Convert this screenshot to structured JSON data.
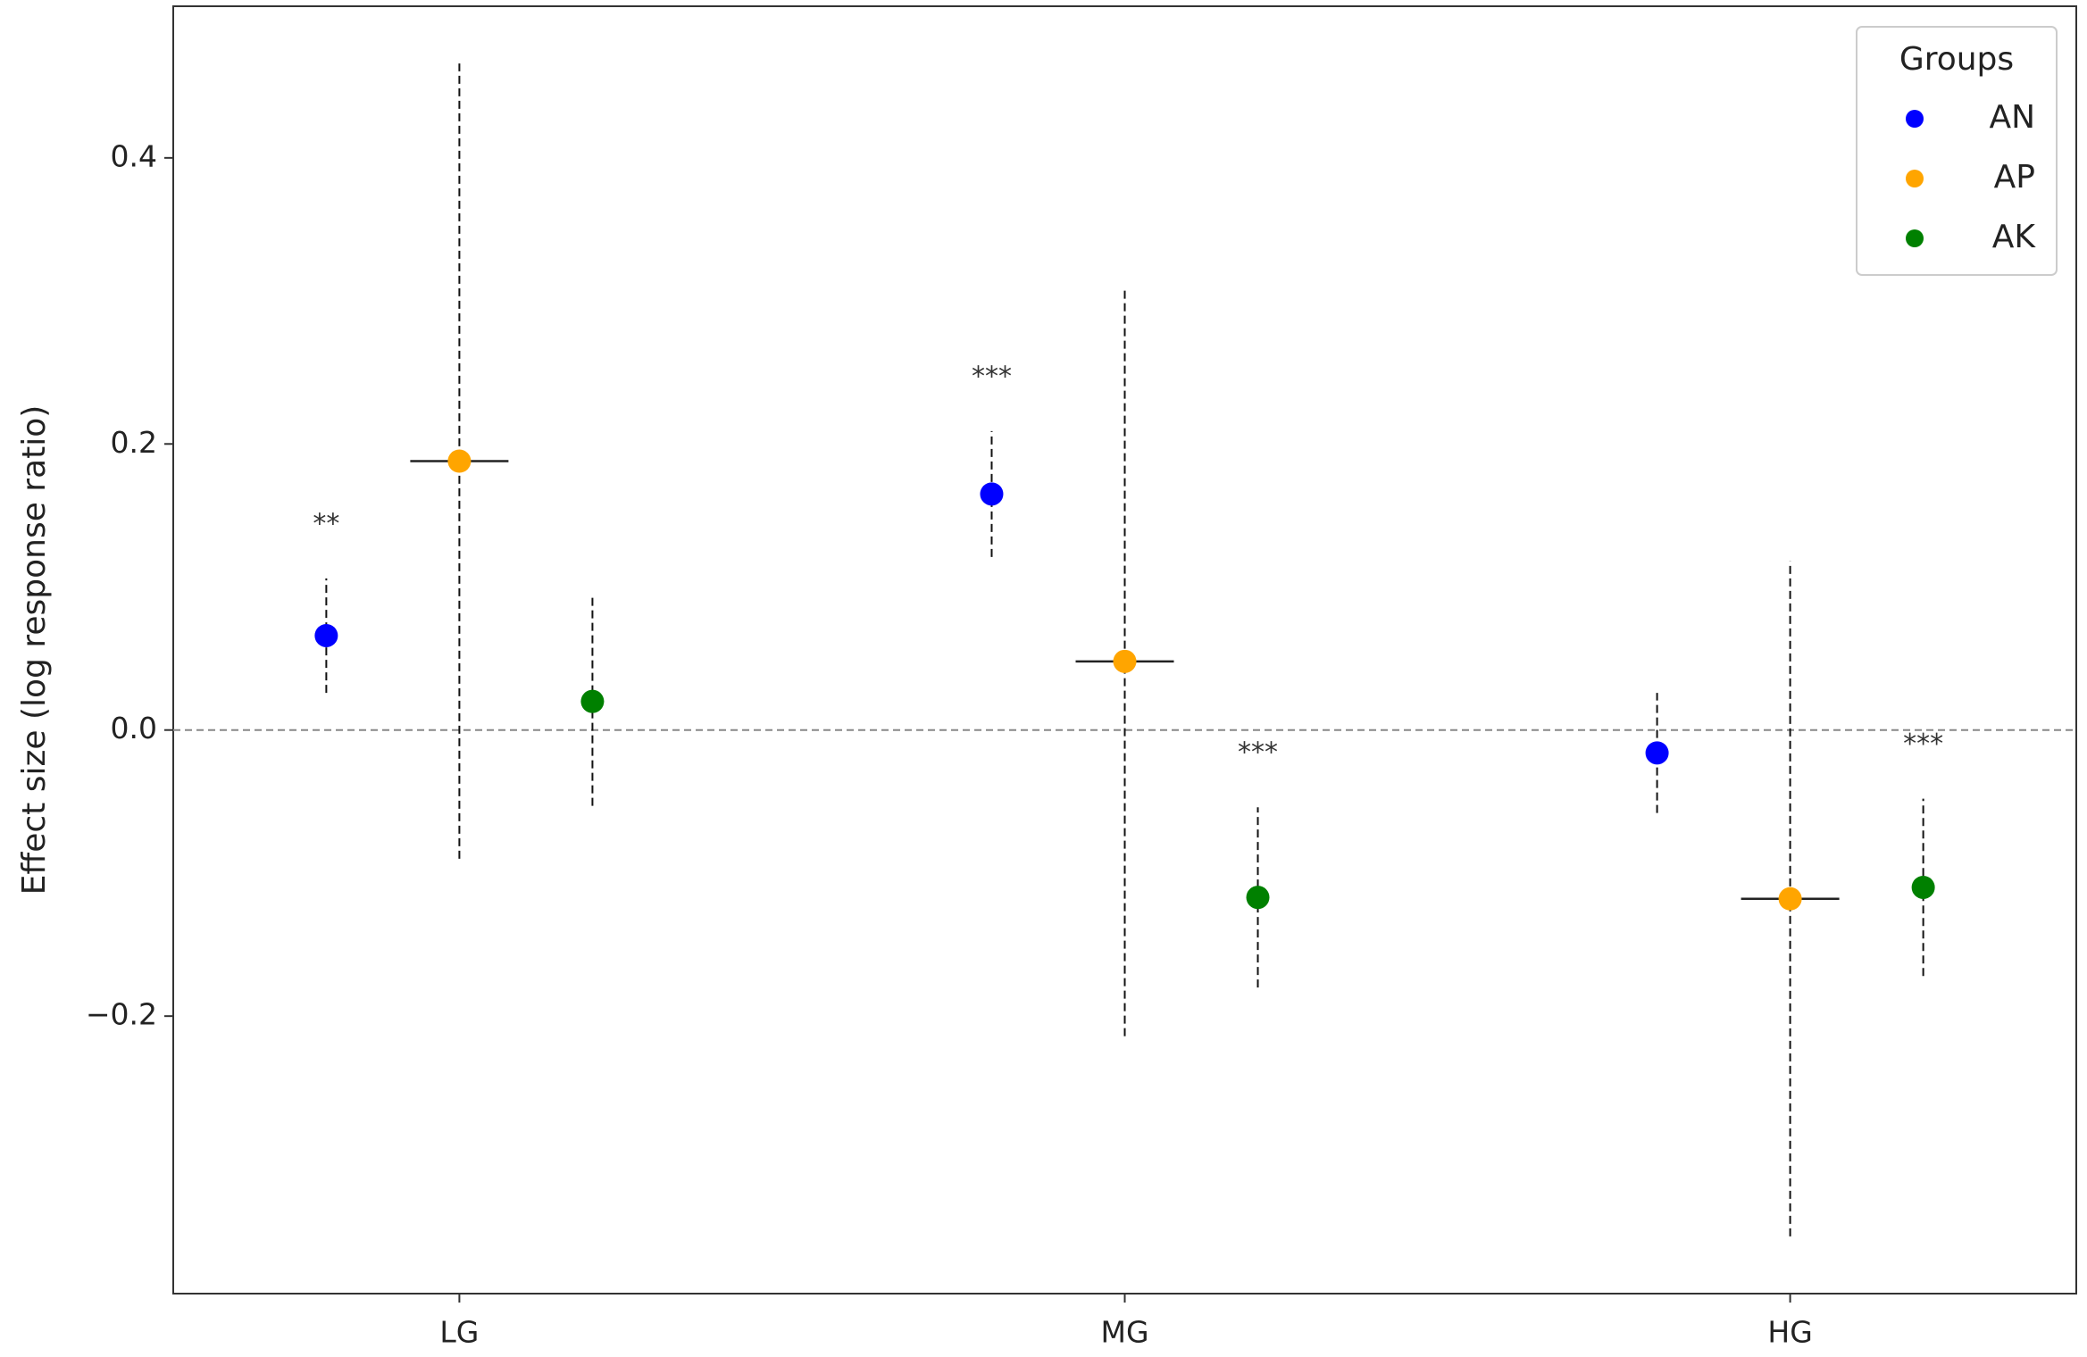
{
  "chart_data": {
    "type": "errorbar-dot",
    "y_label": "Effect size (log response ratio)",
    "categories": [
      "LG",
      "MG",
      "HG"
    ],
    "series": [
      {
        "name": "AN",
        "color": "#0000ff",
        "values": [
          0.066,
          0.165,
          -0.016
        ],
        "errors": [
          0.04,
          0.044,
          0.042
        ],
        "annotations": [
          "**",
          "***",
          null
        ]
      },
      {
        "name": "AP",
        "color": "#ffa500",
        "values": [
          0.188,
          0.048,
          -0.118
        ],
        "errors": [
          0.278,
          0.262,
          0.236
        ],
        "annotations": [
          null,
          null,
          null
        ],
        "xbar": true
      },
      {
        "name": "AK",
        "color": "#008000",
        "values": [
          0.02,
          -0.117,
          -0.11
        ],
        "errors": [
          0.073,
          0.063,
          0.062
        ],
        "annotations": [
          null,
          "***",
          "***"
        ]
      }
    ],
    "ylim": [
      -0.394,
      0.506
    ],
    "yticks": [
      {
        "value": -0.2,
        "label": "−0.2"
      },
      {
        "value": 0,
        "label": "0.0"
      },
      0.2,
      0.4
    ],
    "hline": 0,
    "legend_title": "Groups",
    "legend": "upper right"
  }
}
